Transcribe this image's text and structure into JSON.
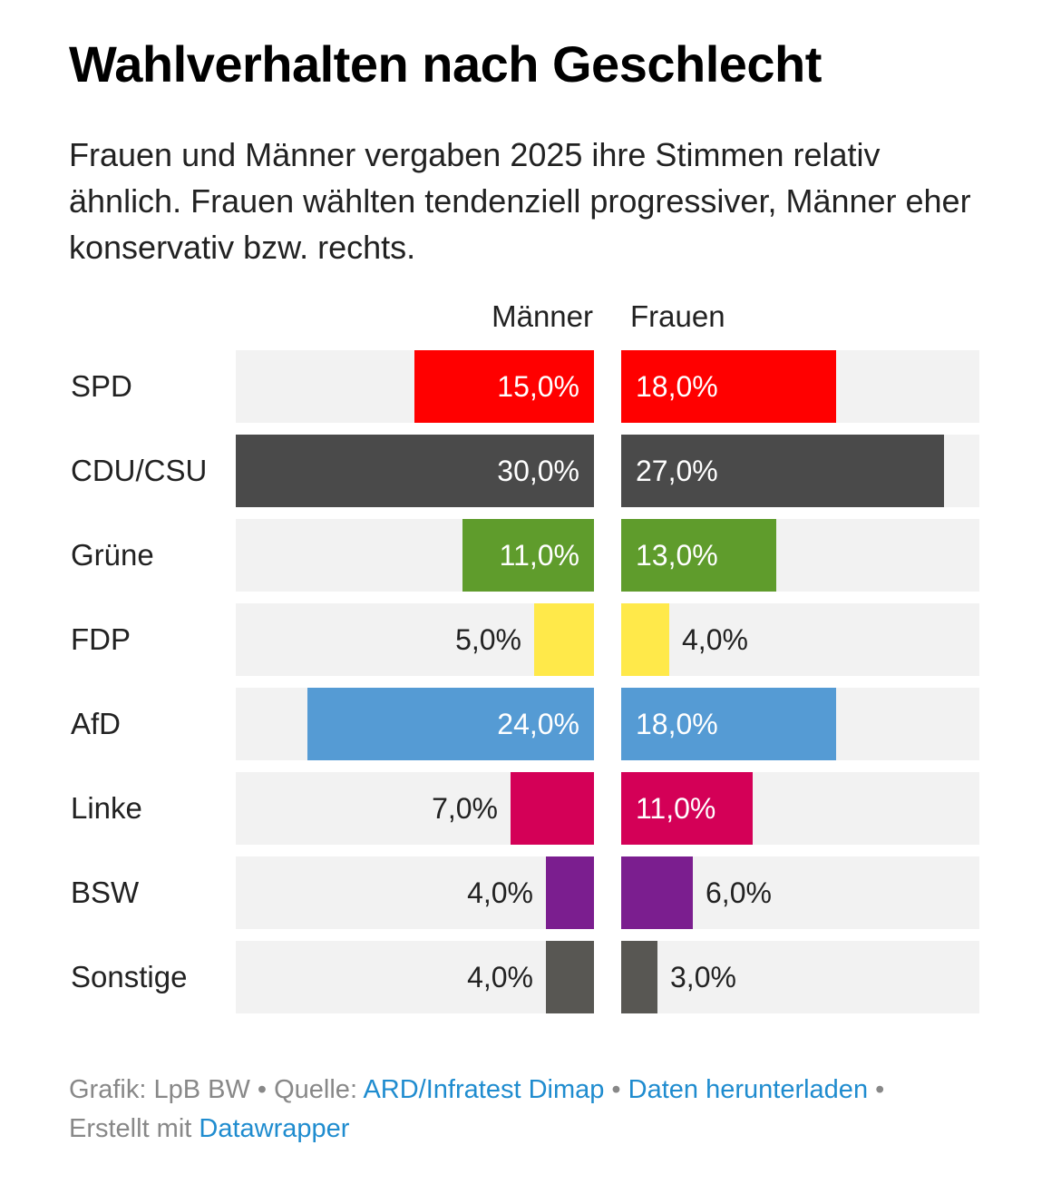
{
  "title": "Wahlverhalten nach Geschlecht",
  "subtitle": "Frauen und Männer vergaben 2025 ihre Stimmen relativ ähnlich. Frauen wählten tendenziell progressiver, Männer eher konservativ bzw. rechts.",
  "footer": {
    "grafik": "Grafik: LpB BW",
    "sep": " • ",
    "quelle_label": "Quelle: ",
    "quelle_link": "ARD/Infratest Dimap",
    "download_link": "Daten herunterladen",
    "erstellt": "Erstellt mit ",
    "datawrapper_link": "Datawrapper"
  },
  "chart_data": {
    "type": "bar",
    "orientation": "horizontal-butterfly",
    "title": "Wahlverhalten nach Geschlecht",
    "unit": "%",
    "xlim": [
      0,
      30
    ],
    "categories": [
      "SPD",
      "CDU/CSU",
      "Grüne",
      "FDP",
      "AfD",
      "Linke",
      "BSW",
      "Sonstige"
    ],
    "colors": [
      "#ff0000",
      "#4a4a4a",
      "#5f9c2c",
      "#ffe94a",
      "#559bd4",
      "#d40057",
      "#7b1e8f",
      "#585753"
    ],
    "label_inside": [
      true,
      true,
      true,
      false,
      true,
      false,
      false,
      false
    ],
    "series": [
      {
        "name": "Männer",
        "values": [
          15.0,
          30.0,
          11.0,
          5.0,
          24.0,
          7.0,
          4.0,
          4.0
        ],
        "labels": [
          "15,0%",
          "30,0%",
          "11,0%",
          "5,0%",
          "24,0%",
          "7,0%",
          "4,0%",
          "4,0%"
        ]
      },
      {
        "name": "Frauen",
        "values": [
          18.0,
          27.0,
          13.0,
          4.0,
          18.0,
          11.0,
          6.0,
          3.0
        ],
        "labels": [
          "18,0%",
          "27,0%",
          "13,0%",
          "4,0%",
          "18,0%",
          "11,0%",
          "6,0%",
          "3,0%"
        ]
      }
    ],
    "label_inside_frauen": [
      true,
      true,
      true,
      false,
      true,
      true,
      false,
      false
    ]
  }
}
